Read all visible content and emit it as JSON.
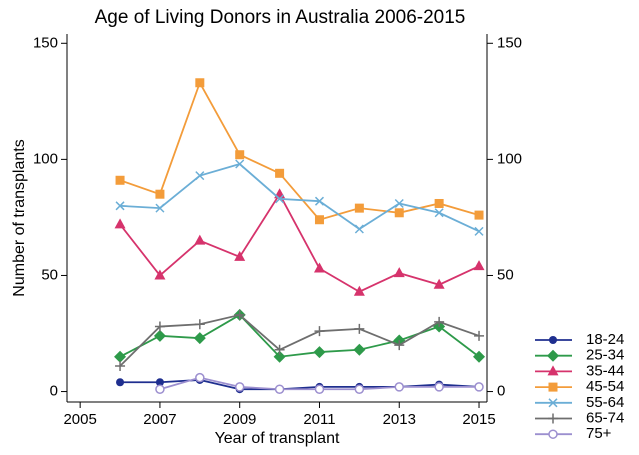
{
  "chart_data": {
    "type": "line",
    "title": "Age of Living Donors in Australia 2006-2015",
    "x_label": "Year of transplant",
    "y_label": "Number of transplants",
    "x": [
      2006,
      2007,
      2008,
      2009,
      2010,
      2011,
      2012,
      2013,
      2014,
      2015
    ],
    "xlim": [
      2004.67,
      2015.2
    ],
    "xticks": [
      2005,
      2007,
      2009,
      2011,
      2013,
      2015
    ],
    "ylim": [
      -4.5,
      154
    ],
    "yticks": [
      0,
      50,
      100,
      150
    ],
    "y2lim": [
      -4.5,
      154
    ],
    "y2ticks": [
      0,
      50,
      100,
      150
    ],
    "series": [
      {
        "name": "18-24",
        "color": "#1f2f8f",
        "marker": "circle",
        "values": [
          4,
          4,
          5,
          1,
          1,
          2,
          2,
          2,
          3,
          2
        ]
      },
      {
        "name": "25-34",
        "color": "#2e9a4a",
        "marker": "diamond",
        "values": [
          15,
          24,
          23,
          33,
          15,
          17,
          18,
          22,
          28,
          15
        ]
      },
      {
        "name": "35-44",
        "color": "#d6336c",
        "marker": "triangle",
        "values": [
          72,
          50,
          65,
          58,
          85,
          53,
          43,
          51,
          46,
          54
        ]
      },
      {
        "name": "45-54",
        "color": "#f39c3a",
        "marker": "square",
        "values": [
          91,
          85,
          133,
          102,
          94,
          74,
          79,
          77,
          81,
          76
        ]
      },
      {
        "name": "55-64",
        "color": "#6baed6",
        "marker": "x",
        "values": [
          80,
          79,
          93,
          98,
          83,
          82,
          70,
          81,
          77,
          69
        ]
      },
      {
        "name": "65-74",
        "color": "#6e6e6e",
        "marker": "plus",
        "values": [
          11,
          28,
          29,
          33,
          18,
          26,
          27,
          20,
          30,
          24
        ]
      },
      {
        "name": "75+",
        "color": "#9c8fcf",
        "marker": "hollow-circle",
        "values": [
          null,
          1,
          6,
          2,
          1,
          1,
          1,
          2,
          2,
          2
        ]
      }
    ]
  }
}
